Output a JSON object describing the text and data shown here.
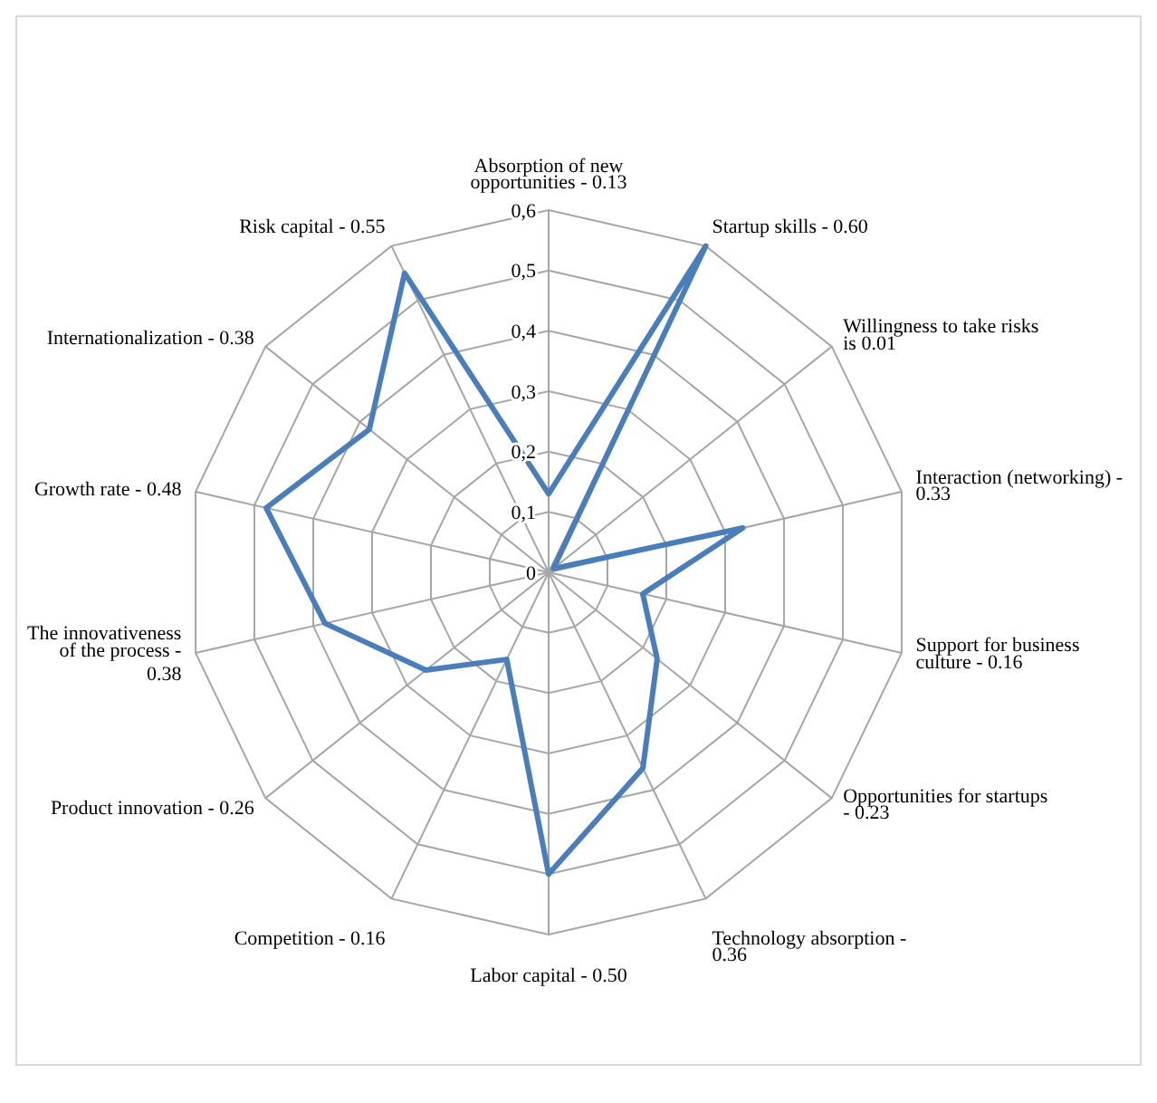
{
  "chart_data": {
    "type": "radar",
    "categories": [
      "Absorption of new opportunities - 0.13",
      "Startup skills - 0.60",
      "Willingness to take risks is 0.01",
      "Interaction (networking) - 0.33",
      "Support for business culture - 0.16",
      "Opportunities for startups - 0.23",
      "Technology absorption - 0.36",
      "Labor capital - 0.50",
      "Competition - 0.16",
      "Product innovation - 0.26",
      "The innovativeness of the process - 0.38",
      "Growth rate - 0.48",
      "Internationalization - 0.38",
      "Risk capital - 0.55"
    ],
    "series": [
      {
        "color": "#4a7ebb",
        "values": [
          0.13,
          0.6,
          0.01,
          0.33,
          0.16,
          0.23,
          0.36,
          0.5,
          0.16,
          0.26,
          0.38,
          0.48,
          0.38,
          0.55
        ]
      }
    ],
    "ylim": [
      0,
      0.6
    ],
    "yticks": [
      0,
      {
        "value": 0.1,
        "label": "0,1"
      },
      {
        "value": 0.2,
        "label": "0,2"
      },
      {
        "value": 0.3,
        "label": "0,3"
      },
      {
        "value": 0.4,
        "label": "0,4"
      },
      {
        "value": 0.5,
        "label": "0,5"
      },
      {
        "value": 0.6,
        "label": "0,6"
      }
    ],
    "grid": true,
    "marker": "none",
    "line_style": "solid"
  }
}
